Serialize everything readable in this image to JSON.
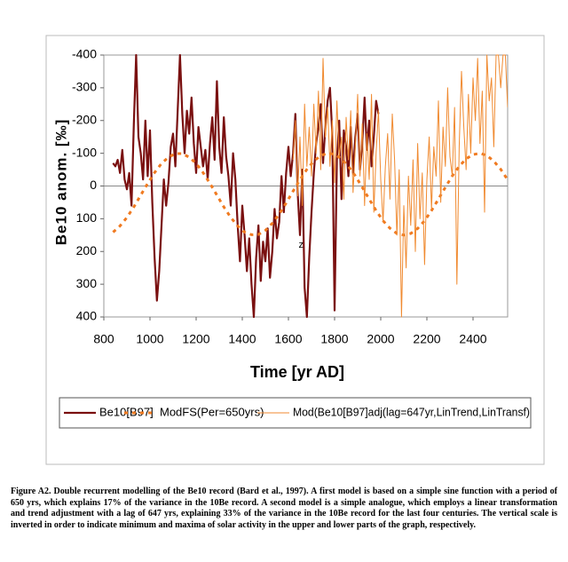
{
  "chart_data": {
    "type": "line",
    "xlabel": "Time [yr AD]",
    "ylabel": "Be10 anom.  [‰]",
    "xlim": [
      800,
      2550
    ],
    "xticks": [
      800,
      1000,
      1200,
      1400,
      1600,
      1800,
      2000,
      2200,
      2400
    ],
    "ylim": [
      400,
      -400
    ],
    "yticks": [
      -400,
      -300,
      -200,
      -100,
      0,
      100,
      200,
      300,
      400
    ],
    "zero_line": true,
    "legend": "bottom",
    "annotations": [
      {
        "text": "z",
        "x": 1655,
        "y": 180
      }
    ],
    "series": [
      {
        "name": "Be10[B97]",
        "color": "#7a1010",
        "style": "solid",
        "width": 2.2,
        "x": [
          840,
          850,
          860,
          870,
          880,
          890,
          900,
          910,
          920,
          930,
          940,
          950,
          960,
          970,
          980,
          990,
          1000,
          1010,
          1020,
          1030,
          1040,
          1050,
          1060,
          1070,
          1080,
          1090,
          1100,
          1110,
          1120,
          1130,
          1140,
          1150,
          1160,
          1170,
          1180,
          1190,
          1200,
          1210,
          1220,
          1230,
          1240,
          1250,
          1260,
          1270,
          1280,
          1290,
          1300,
          1310,
          1320,
          1330,
          1340,
          1350,
          1360,
          1370,
          1380,
          1390,
          1400,
          1410,
          1420,
          1430,
          1440,
          1450,
          1460,
          1470,
          1480,
          1490,
          1500,
          1510,
          1520,
          1530,
          1540,
          1550,
          1560,
          1570,
          1580,
          1590,
          1600,
          1610,
          1620,
          1630,
          1640,
          1650,
          1660,
          1670,
          1680,
          1690,
          1700,
          1710,
          1720,
          1730,
          1740,
          1750,
          1760,
          1770,
          1780,
          1790,
          1800,
          1810,
          1820,
          1830,
          1840,
          1850,
          1860,
          1870,
          1880,
          1890,
          1900,
          1910,
          1920,
          1930,
          1940,
          1950,
          1960,
          1970,
          1980,
          1990
        ],
        "values": [
          -70,
          -60,
          -80,
          -40,
          -110,
          -20,
          10,
          -40,
          60,
          -190,
          -400,
          -150,
          -100,
          -20,
          -200,
          -30,
          -170,
          50,
          220,
          350,
          260,
          120,
          -20,
          60,
          -10,
          -120,
          -160,
          -60,
          -230,
          -400,
          -220,
          -100,
          -230,
          -160,
          -270,
          -130,
          -40,
          -180,
          -120,
          -60,
          -110,
          -20,
          -130,
          -210,
          -80,
          -320,
          -120,
          -40,
          -210,
          -90,
          -30,
          60,
          -100,
          -20,
          120,
          230,
          60,
          150,
          260,
          160,
          300,
          400,
          220,
          120,
          290,
          170,
          230,
          130,
          280,
          200,
          70,
          160,
          110,
          -30,
          80,
          -40,
          -120,
          -30,
          -100,
          -220,
          20,
          150,
          -50,
          310,
          400,
          220,
          80,
          -40,
          -130,
          -180,
          -250,
          -70,
          -180,
          -260,
          -300,
          -160,
          380,
          -80,
          -200,
          40,
          -170,
          -120,
          -30,
          -180,
          -40,
          -150,
          -220,
          -50,
          -130,
          -270,
          -110,
          -200,
          -60,
          -150,
          -260,
          -220
        ]
      },
      {
        "name": "ModFS(Per=650yrs)",
        "color": "#f07a20",
        "style": "dotted",
        "width": 3,
        "x": [
          840,
          870,
          900,
          930,
          960,
          990,
          1020,
          1050,
          1080,
          1110,
          1140,
          1170,
          1200,
          1230,
          1260,
          1290,
          1320,
          1350,
          1380,
          1410,
          1440,
          1470,
          1500,
          1530,
          1560,
          1590,
          1620,
          1650,
          1680,
          1710,
          1740,
          1770,
          1800,
          1830,
          1860,
          1890,
          1920,
          1950,
          1980,
          2010,
          2040,
          2070,
          2100,
          2130,
          2160,
          2190,
          2220,
          2250,
          2280,
          2310,
          2340,
          2370,
          2400,
          2430,
          2460,
          2490,
          2520,
          2550
        ],
        "values": [
          141,
          122,
          96,
          64,
          28,
          -8,
          -41,
          -69,
          -88,
          -99,
          -99,
          -88,
          -69,
          -41,
          -8,
          28,
          64,
          96,
          122,
          141,
          149,
          148,
          136,
          114,
          86,
          52,
          16,
          -19,
          -51,
          -76,
          -93,
          -100,
          -97,
          -83,
          -60,
          -31,
          4,
          40,
          75,
          106,
          129,
          145,
          150,
          145,
          130,
          106,
          75,
          40,
          4,
          -31,
          -60,
          -83,
          -96,
          -100,
          -93,
          -76,
          -51,
          -19
        ]
      },
      {
        "name": "Mod(Be10[B97]adj(lag=647yr,LinTrend,LinTransf)",
        "color": "#f08a30",
        "style": "solid",
        "width": 1,
        "x": [
          1620,
          1630,
          1640,
          1650,
          1660,
          1670,
          1680,
          1690,
          1700,
          1710,
          1720,
          1730,
          1740,
          1750,
          1760,
          1770,
          1780,
          1790,
          1800,
          1810,
          1820,
          1830,
          1840,
          1850,
          1860,
          1870,
          1880,
          1890,
          1900,
          1910,
          1920,
          1930,
          1940,
          1950,
          1960,
          1970,
          1980,
          1990,
          2000,
          2010,
          2020,
          2030,
          2040,
          2050,
          2060,
          2070,
          2080,
          2090,
          2100,
          2110,
          2120,
          2130,
          2140,
          2150,
          2160,
          2170,
          2180,
          2190,
          2200,
          2210,
          2220,
          2230,
          2240,
          2250,
          2260,
          2270,
          2280,
          2290,
          2300,
          2310,
          2320,
          2330,
          2340,
          2350,
          2360,
          2370,
          2380,
          2390,
          2400,
          2410,
          2420,
          2430,
          2440,
          2450,
          2460,
          2470,
          2480,
          2490,
          2500,
          2510,
          2520,
          2530,
          2540,
          2550
        ],
        "values": [
          -80,
          -200,
          30,
          -150,
          60,
          -250,
          -60,
          -180,
          -30,
          -250,
          -100,
          -290,
          -50,
          -390,
          -150,
          -240,
          -60,
          -200,
          -10,
          -260,
          -90,
          -150,
          40,
          -210,
          -80,
          -230,
          20,
          -120,
          -280,
          -30,
          -190,
          60,
          -160,
          -20,
          -280,
          80,
          -100,
          -230,
          -20,
          110,
          -60,
          -160,
          40,
          -220,
          -80,
          150,
          -50,
          400,
          60,
          250,
          -30,
          120,
          -80,
          200,
          -130,
          100,
          -40,
          240,
          -20,
          -150,
          70,
          -120,
          -30,
          -260,
          50,
          -180,
          -60,
          -300,
          -90,
          -30,
          -240,
          300,
          -120,
          -350,
          -180,
          -50,
          -280,
          -100,
          -330,
          -200,
          -390,
          -130,
          -290,
          80,
          -400,
          -260,
          -330,
          -120,
          -400,
          -400,
          -300,
          -400,
          -400,
          -240
        ]
      }
    ],
    "caption": "Figure A2. Double recurrent modelling of the Be10 record (Bard et al., 1997). A first model is based on a simple sine function with a period of 650 yrs, which explains 17% of the variance in the 10Be record. A second model is a simple analogue, which employs a linear transformation and trend adjustment with a lag of 647 yrs, explaining 33% of the variance in the 10Be record for the last four centuries. The vertical scale is inverted in order to indicate minimum and maxima of solar activity in the upper and lower parts of the graph, respectively."
  }
}
